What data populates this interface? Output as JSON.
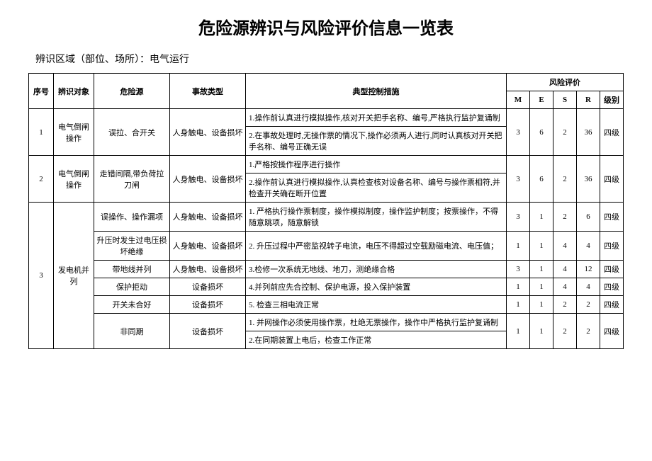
{
  "title": "危险源辨识与风险评价信息一览表",
  "subtitle": "辨识区域（部位、场所）：电气运行",
  "headers": {
    "seq": "序号",
    "obj": "辨识对象",
    "src": "危险源",
    "type": "事故类型",
    "measure": "典型控制措施",
    "eval_group": "风险评价",
    "M": "M",
    "E": "E",
    "S": "S",
    "R": "R",
    "level": "级别"
  },
  "rows": {
    "r1": {
      "seq": "1",
      "obj": "电气倒闸操作",
      "src": "误拉、合开关",
      "type": "人身触电、设备损坏",
      "m1": "1.操作前认真进行模拟操作,核对开关把手名称、编号,严格执行监护复诵制",
      "m2": "2.在事故处理时,无操作票的情况下,操作必须两人进行,同时认真核对开关把手名称、编号正确无误",
      "M": "3",
      "E": "6",
      "S": "2",
      "R": "36",
      "level": "四级"
    },
    "r2": {
      "seq": "2",
      "obj": "电气倒闸操作",
      "src": "走错间隔,带负荷拉刀闸",
      "type": "人身触电、设备损坏",
      "m1": "1.严格按操作程序进行操作",
      "m2": "2.操作前认真进行模拟操作,认真检查核对设备名称、编号与操作票相符,并检查开关确在断开位置",
      "M": "3",
      "E": "6",
      "S": "2",
      "R": "36",
      "level": "四级"
    },
    "r3": {
      "seq": "3",
      "obj": "发电机并列",
      "sub1": {
        "src": "误操作、操作漏项",
        "type": "人身触电、设备损坏",
        "m": "1. 严格执行操作票制度，操作模拟制度，操作监护制度；按票操作，不得随意跳项，随意解锁",
        "M": "3",
        "E": "1",
        "S": "2",
        "R": "6",
        "level": "四级"
      },
      "sub2": {
        "src": "升压时发生过电压损坏绝缘",
        "type": "人身触电、设备损坏",
        "m": "2. 升压过程中严密监视转子电流，电压不得超过空载励磁电流、电压值；",
        "M": "1",
        "E": "1",
        "S": "4",
        "R": "4",
        "level": "四级"
      },
      "sub3": {
        "src": "带地线并列",
        "type": "人身触电、设备损坏",
        "m": "3.检修一次系统无地线、地刀，测绝缘合格",
        "M": "3",
        "E": "1",
        "S": "4",
        "R": "12",
        "level": "四级"
      },
      "sub4": {
        "src": "保护拒动",
        "type": "设备损坏",
        "m": "4.并列前应先合控制、保护电源，投入保护装置",
        "M": "1",
        "E": "1",
        "S": "4",
        "R": "4",
        "level": "四级"
      },
      "sub5": {
        "src": "开关未合好",
        "type": "设备损坏",
        "m": "5. 检查三相电流正常",
        "M": "1",
        "E": "1",
        "S": "2",
        "R": "2",
        "level": "四级"
      },
      "sub6": {
        "src": "非同期",
        "type": "设备损坏",
        "m1": "1. 并网操作必须使用操作票，杜绝无票操作，操作中严格执行监护复诵制",
        "m2": "2.在同期装置上电后，检查工作正常",
        "M": "1",
        "E": "1",
        "S": "2",
        "R": "2",
        "level": "四级"
      }
    }
  }
}
